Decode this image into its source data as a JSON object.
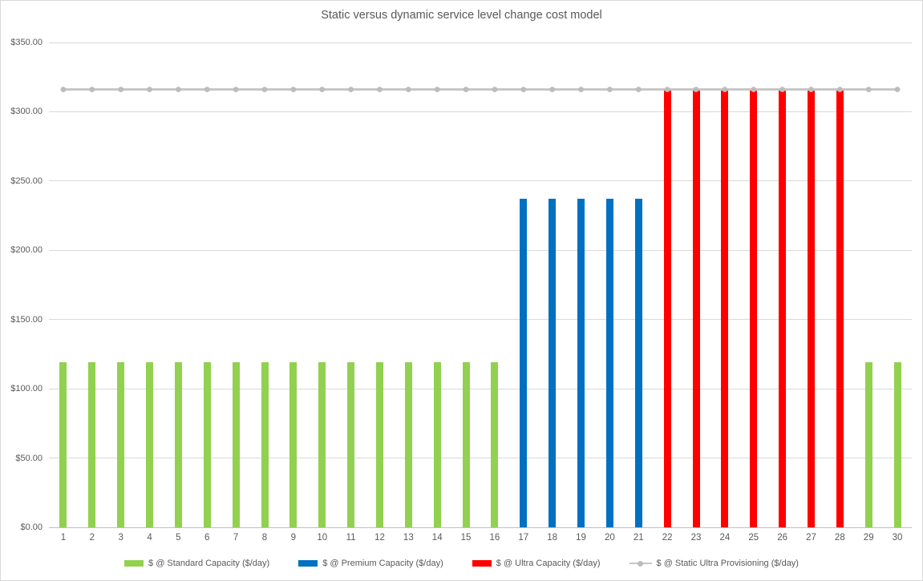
{
  "chart_data": {
    "type": "bar",
    "title": "Static versus dynamic service level change cost model",
    "categories": [
      1,
      2,
      3,
      4,
      5,
      6,
      7,
      8,
      9,
      10,
      11,
      12,
      13,
      14,
      15,
      16,
      17,
      18,
      19,
      20,
      21,
      22,
      23,
      24,
      25,
      26,
      27,
      28,
      29,
      30
    ],
    "series": [
      {
        "name": "$ @ Standard Capacity ($/day)",
        "kind": "bar",
        "color": "#92D050",
        "values": [
          119.1,
          119.1,
          119.1,
          119.1,
          119.1,
          119.1,
          119.1,
          119.1,
          119.1,
          119.1,
          119.1,
          119.1,
          119.1,
          119.1,
          119.1,
          119.1,
          null,
          null,
          null,
          null,
          null,
          null,
          null,
          null,
          null,
          null,
          null,
          null,
          119.1,
          119.1
        ]
      },
      {
        "name": "$ @ Premium Capacity ($/day)",
        "kind": "bar",
        "color": "#0070C0",
        "values": [
          null,
          null,
          null,
          null,
          null,
          null,
          null,
          null,
          null,
          null,
          null,
          null,
          null,
          null,
          null,
          null,
          237.1,
          237.1,
          237.1,
          237.1,
          237.1,
          null,
          null,
          null,
          null,
          null,
          null,
          null,
          null,
          null
        ]
      },
      {
        "name": "$ @ Ultra Capacity ($/day)",
        "kind": "bar",
        "color": "#FF0000",
        "values": [
          null,
          null,
          null,
          null,
          null,
          null,
          null,
          null,
          null,
          null,
          null,
          null,
          null,
          null,
          null,
          null,
          null,
          null,
          null,
          null,
          null,
          316.1,
          316.1,
          316.1,
          316.1,
          316.1,
          316.1,
          316.1,
          null,
          null
        ]
      },
      {
        "name": "$ @ Static Ultra Provisioning ($/day)",
        "kind": "line",
        "color": "#C6C6C6",
        "marker_color": "#BCBCBC",
        "values": [
          316.1,
          316.1,
          316.1,
          316.1,
          316.1,
          316.1,
          316.1,
          316.1,
          316.1,
          316.1,
          316.1,
          316.1,
          316.1,
          316.1,
          316.1,
          316.1,
          316.1,
          316.1,
          316.1,
          316.1,
          316.1,
          316.1,
          316.1,
          316.1,
          316.1,
          316.1,
          316.1,
          316.1,
          316.1,
          316.1
        ]
      }
    ],
    "ylim": [
      0,
      350
    ],
    "ytick_step": 50,
    "ytick_prefix": "$",
    "grid": true,
    "legend_position": "bottom",
    "palette": {
      "gridline": "#D9D9D9",
      "axis_line": "#BFBFBF",
      "text": "#595959",
      "background": "#FFFFFF"
    }
  }
}
